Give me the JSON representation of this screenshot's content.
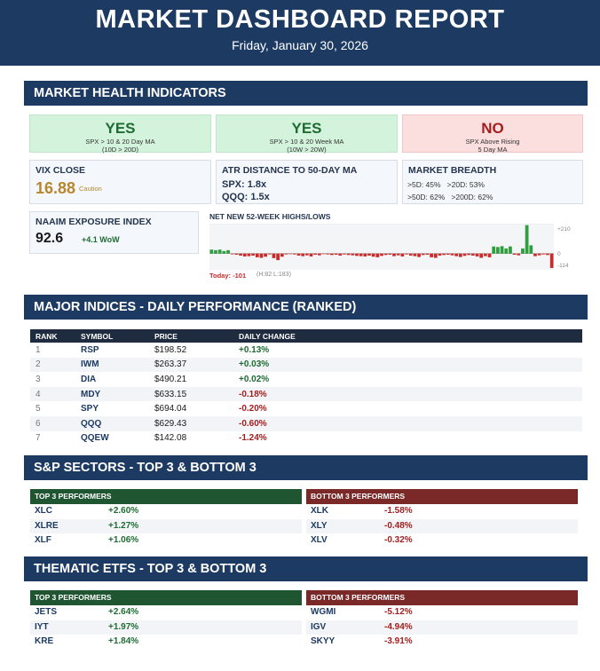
{
  "header": {
    "title": "MARKET DASHBOARD REPORT",
    "date": "Friday, January 30, 2026"
  },
  "sections": {
    "health": "MARKET HEALTH INDICATORS",
    "indices": "MAJOR INDICES - DAILY PERFORMANCE (RANKED)",
    "sectors": "S&P SECTORS - TOP 3 & BOTTOM 3",
    "thematic": "THEMATIC ETFS - TOP 3 & BOTTOM 3"
  },
  "signals": [
    {
      "value": "YES",
      "line1": "SPX > 10 & 20 Day MA",
      "line2": "(10D > 20D)",
      "status": "green"
    },
    {
      "value": "YES",
      "line1": "SPX > 10 & 20 Week MA",
      "line2": "(10W > 20W)",
      "status": "green"
    },
    {
      "value": "NO",
      "line1": "SPX Above Rising",
      "line2": "5 Day MA",
      "status": "red"
    }
  ],
  "vix": {
    "label": "VIX CLOSE",
    "value": "16.88",
    "note": "Caution"
  },
  "atr": {
    "label": "ATR DISTANCE TO 50-DAY MA",
    "spx": "SPX: 1.8x",
    "qqq": "QQQ: 1.5x"
  },
  "breadth": {
    "label": "MARKET BREADTH",
    "line1": ">5D: 45%   >20D: 53%",
    "line2": ">50D: 62%   >200D: 62%"
  },
  "naaim": {
    "label": "NAAIM EXPOSURE INDEX",
    "value": "92.6",
    "change": "+4.1 WoW"
  },
  "highs_lows": {
    "label": "NET NEW 52-WEEK HIGHS/LOWS",
    "today": "Today: -101",
    "range": "(H:82 L:183)",
    "axis_top": "+210",
    "axis_zero": "0",
    "axis_bottom": "-114",
    "ymax": 210,
    "ymin": -114,
    "values": [
      28,
      24,
      28,
      18,
      24,
      -5,
      -8,
      -14,
      -20,
      -18,
      -14,
      -26,
      -30,
      -22,
      -6,
      -32,
      -46,
      -22,
      -6,
      -4,
      -6,
      -14,
      -18,
      -12,
      -20,
      -8,
      -12,
      -4,
      -6,
      -10,
      -8,
      -14,
      -6,
      -10,
      -12,
      -16,
      -18,
      -20,
      -14,
      -22,
      -26,
      -16,
      -10,
      -8,
      -18,
      -12,
      -20,
      -6,
      -14,
      -18,
      -24,
      -10,
      -8,
      -26,
      -30,
      -14,
      -10,
      -8,
      -12,
      -18,
      -24,
      -16,
      -10,
      -14,
      -20,
      -30,
      -18,
      -26,
      50,
      46,
      52,
      36,
      50,
      -8,
      -12,
      36,
      200,
      58,
      -18,
      -12,
      -6,
      -10,
      -101
    ],
    "colors": {
      "pos": "#2e9e3e",
      "neg": "#c92a2a"
    }
  },
  "indices": {
    "headers": [
      "RANK",
      "SYMBOL",
      "PRICE",
      "DAILY CHANGE"
    ],
    "rows": [
      {
        "rank": "1",
        "symbol": "RSP",
        "price": "$198.52",
        "change": "+0.13%"
      },
      {
        "rank": "2",
        "symbol": "IWM",
        "price": "$263.37",
        "change": "+0.03%"
      },
      {
        "rank": "3",
        "symbol": "DIA",
        "price": "$490.21",
        "change": "+0.02%"
      },
      {
        "rank": "4",
        "symbol": "MDY",
        "price": "$633.15",
        "change": "-0.18%"
      },
      {
        "rank": "5",
        "symbol": "SPY",
        "price": "$694.04",
        "change": "-0.20%"
      },
      {
        "rank": "6",
        "symbol": "QQQ",
        "price": "$629.43",
        "change": "-0.60%"
      },
      {
        "rank": "7",
        "symbol": "QQEW",
        "price": "$142.08",
        "change": "-1.24%"
      }
    ]
  },
  "sectors": {
    "top_label": "TOP 3 PERFORMERS",
    "bottom_label": "BOTTOM 3 PERFORMERS",
    "top": [
      {
        "symbol": "XLC",
        "change": "+2.60%"
      },
      {
        "symbol": "XLRE",
        "change": "+1.27%"
      },
      {
        "symbol": "XLF",
        "change": "+1.06%"
      }
    ],
    "bottom": [
      {
        "symbol": "XLK",
        "change": "-1.58%"
      },
      {
        "symbol": "XLY",
        "change": "-0.48%"
      },
      {
        "symbol": "XLV",
        "change": "-0.32%"
      }
    ]
  },
  "thematic": {
    "top_label": "TOP 3 PERFORMERS",
    "bottom_label": "BOTTOM 3 PERFORMERS",
    "top": [
      {
        "symbol": "JETS",
        "change": "+2.64%"
      },
      {
        "symbol": "IYT",
        "change": "+1.97%"
      },
      {
        "symbol": "KRE",
        "change": "+1.84%"
      }
    ],
    "bottom": [
      {
        "symbol": "WGMI",
        "change": "-5.12%"
      },
      {
        "symbol": "IGV",
        "change": "-4.94%"
      },
      {
        "symbol": "SKYY",
        "change": "-3.91%"
      }
    ]
  }
}
